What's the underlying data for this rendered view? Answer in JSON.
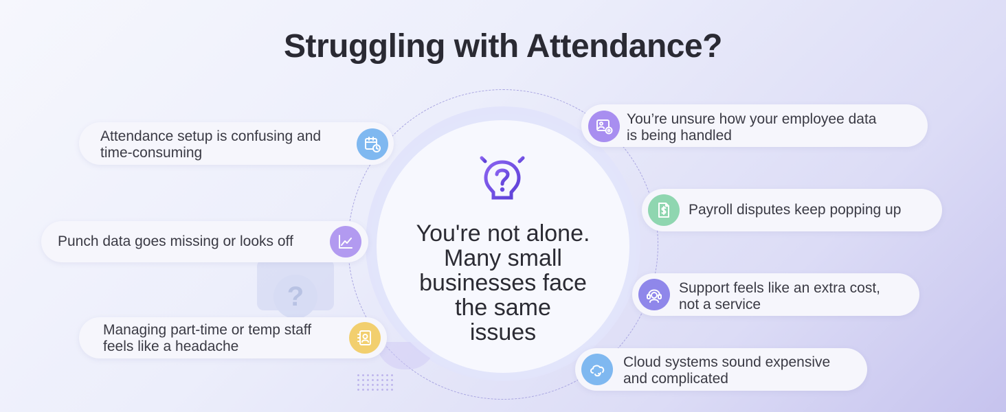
{
  "title": "Struggling with Attendance?",
  "center": {
    "line1": "You're not alone.",
    "line2": "Many small",
    "line3": "businesses face",
    "line4": "the same",
    "line5": "issues",
    "icon": "lightbulb-question-icon"
  },
  "decor": {
    "question_mark": "?"
  },
  "issues_left": [
    {
      "line1": "Attendance setup is confusing and",
      "line2": "time-consuming",
      "icon": "calendar-clock-icon",
      "color": "#7fb8f0"
    },
    {
      "line1": "Punch data goes missing or looks off",
      "icon": "line-chart-icon",
      "color": "#b29af0"
    },
    {
      "line1": "Managing part-time or temp staff",
      "line2": "feels like a headache",
      "icon": "id-card-icon",
      "color": "#f2cf6e"
    }
  ],
  "issues_right": [
    {
      "line1": "You’re unsure how your employee data",
      "line2": "is being handled",
      "icon": "data-settings-icon",
      "color": "#a88ef0"
    },
    {
      "line1": "Payroll disputes keep popping up",
      "icon": "dollar-document-icon",
      "color": "#8fd6b0"
    },
    {
      "line1": "Support feels like an extra cost,",
      "line2": "not a service",
      "icon": "headset-agent-icon",
      "color": "#8f87ea"
    },
    {
      "line1": "Cloud systems sound expensive",
      "line2": "and complicated",
      "icon": "cloud-sync-icon",
      "color": "#7fb8f0"
    }
  ]
}
